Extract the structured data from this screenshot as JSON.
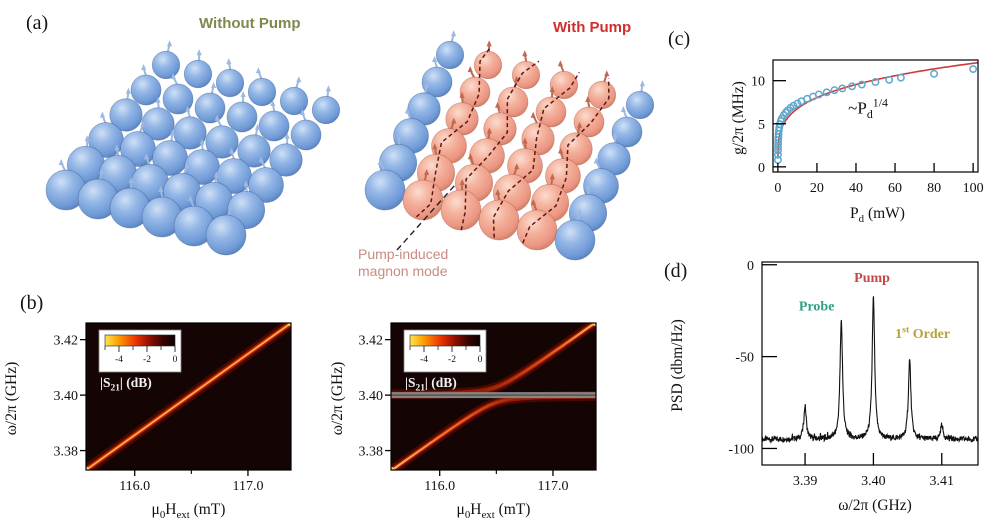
{
  "background": "#ffffff",
  "panels": {
    "a": {
      "label": "(a)",
      "left_title": "Without Pump",
      "right_title": "With Pump",
      "annotation_line1": "Pump-induced",
      "annotation_line2": "magnon mode",
      "colors": {
        "left_title": "#7c8a4e",
        "right_title": "#cf2f2f",
        "annotation": "#c98b82",
        "sphere_blue": "#7fa5da",
        "sphere_pink": "#efa28e"
      },
      "lattice": {
        "rows": 6,
        "cols": 6,
        "pink_lines": [
          1,
          2,
          3,
          4
        ]
      }
    },
    "b": {
      "label": "(b)"
    },
    "c": {
      "label": "(c)"
    },
    "d": {
      "label": "(d)"
    }
  },
  "chart_data": [
    {
      "id": "hmL",
      "type": "heatmap",
      "title": "transmission without pump",
      "x": {
        "min": 115.57,
        "max": 117.38,
        "ticks": [
          {
            "v": 116.0,
            "label": "116.0"
          },
          {
            "v": 117.0,
            "label": "117.0"
          }
        ],
        "minor": [
          116.5
        ]
      },
      "y": {
        "min": 3.373,
        "max": 3.426,
        "ticks": [
          {
            "v": 3.42,
            "label": "3.42"
          },
          {
            "v": 3.4,
            "label": "3.40"
          },
          {
            "v": 3.38,
            "label": "3.38"
          }
        ]
      },
      "xlabel": [
        {
          "t": "μ"
        },
        {
          "t": "0",
          "s": "sub"
        },
        {
          "t": "H"
        },
        {
          "t": "ext",
          "s": "sub"
        },
        {
          "t": " (mT)"
        }
      ],
      "ylabel": [
        {
          "t": "ω/2π (GHz)"
        }
      ],
      "colorbar": {
        "min": -5,
        "max": 0,
        "ticks": [
          {
            "v": -4,
            "label": "-4"
          },
          {
            "v": -2,
            "label": "-2"
          },
          {
            "v": 0,
            "label": "0"
          }
        ],
        "minor": [
          -5,
          -3,
          -1
        ],
        "label": [
          {
            "t": "|S"
          },
          {
            "t": "21",
            "s": "sub"
          },
          {
            "t": "| (dB)"
          }
        ]
      },
      "content": {
        "mode": "diagonal"
      }
    },
    {
      "id": "hmR",
      "type": "heatmap",
      "title": "transmission with pump (anticrossing)",
      "x": {
        "min": 115.57,
        "max": 117.38,
        "ticks": [
          {
            "v": 116.0,
            "label": "116.0"
          },
          {
            "v": 117.0,
            "label": "117.0"
          }
        ],
        "minor": [
          116.5
        ]
      },
      "y": {
        "min": 3.373,
        "max": 3.426,
        "ticks": [
          {
            "v": 3.42,
            "label": "3.42"
          },
          {
            "v": 3.4,
            "label": "3.40"
          },
          {
            "v": 3.38,
            "label": "3.38"
          }
        ]
      },
      "xlabel": [
        {
          "t": "μ"
        },
        {
          "t": "0",
          "s": "sub"
        },
        {
          "t": "H"
        },
        {
          "t": "ext",
          "s": "sub"
        },
        {
          "t": " (mT)"
        }
      ],
      "ylabel": [
        {
          "t": "ω/2π (GHz)"
        }
      ],
      "colorbar": {
        "min": -5,
        "max": 0,
        "ticks": [
          {
            "v": -4,
            "label": "-4"
          },
          {
            "v": -2,
            "label": "-2"
          },
          {
            "v": 0,
            "label": "0"
          }
        ],
        "minor": [
          -5,
          -3,
          -1
        ],
        "label": [
          {
            "t": "|S"
          },
          {
            "t": "21",
            "s": "sub"
          },
          {
            "t": "| (dB)"
          }
        ]
      },
      "content": {
        "mode": "anticrossing",
        "pump_freq": 3.4,
        "coupling": 0.0028
      }
    },
    {
      "id": "gc",
      "type": "scatter",
      "title": "coupling strength vs drive power",
      "x": {
        "min": -2.5,
        "max": 102.5,
        "ticks": [
          {
            "v": 0,
            "label": "0"
          },
          {
            "v": 20,
            "label": "20"
          },
          {
            "v": 40,
            "label": "40"
          },
          {
            "v": 60,
            "label": "60"
          },
          {
            "v": 80,
            "label": "80"
          },
          {
            "v": 100,
            "label": "100"
          }
        ]
      },
      "y": {
        "min": -0.6,
        "max": 12.4,
        "ticks": [
          {
            "v": 0,
            "label": "0"
          },
          {
            "v": 5,
            "label": "5"
          },
          {
            "v": 10,
            "label": "10"
          }
        ]
      },
      "xlabel": [
        {
          "t": "P"
        },
        {
          "t": "d",
          "s": "sub"
        },
        {
          "t": " (mW)"
        }
      ],
      "ylabel": [
        {
          "t": "g/2π (MHz)"
        }
      ],
      "point_color": "#5ea9cb",
      "points": [
        [
          0.02,
          0.8
        ],
        [
          0.04,
          1.4
        ],
        [
          0.06,
          1.9
        ],
        [
          0.09,
          2.3
        ],
        [
          0.13,
          2.7
        ],
        [
          0.18,
          3.1
        ],
        [
          0.25,
          3.45
        ],
        [
          0.35,
          3.8
        ],
        [
          0.5,
          4.2
        ],
        [
          0.7,
          4.55
        ],
        [
          1,
          4.95
        ],
        [
          1.5,
          5.3
        ],
        [
          2,
          5.6
        ],
        [
          3,
          6.0
        ],
        [
          4,
          6.3
        ],
        [
          5,
          6.55
        ],
        [
          6.5,
          6.85
        ],
        [
          8,
          7.1
        ],
        [
          10,
          7.35
        ],
        [
          12,
          7.6
        ],
        [
          15,
          7.9
        ],
        [
          18,
          8.15
        ],
        [
          21,
          8.4
        ],
        [
          25,
          8.65
        ],
        [
          29,
          8.9
        ],
        [
          33,
          9.1
        ],
        [
          38,
          9.35
        ],
        [
          43,
          9.55
        ],
        [
          50,
          9.85
        ],
        [
          57,
          10.1
        ],
        [
          63,
          10.35
        ],
        [
          80,
          10.8
        ],
        [
          100,
          11.35
        ]
      ],
      "fit": {
        "model": "g = a*Pd^1/4",
        "a": 3.8,
        "exp": 0.25,
        "color": "#cf3a3a"
      },
      "annotation": {
        "segments": [
          {
            "t": "~P"
          },
          {
            "t": "d",
            "s": "sub"
          },
          {
            "t": "1/4",
            "s": "sup"
          }
        ],
        "x": 36,
        "y": 6.2
      }
    },
    {
      "id": "psd",
      "type": "line",
      "title": "power spectral density",
      "x": {
        "min": 3.3837,
        "max": 3.4153,
        "ticks": [
          {
            "v": 3.39,
            "label": "3.39"
          },
          {
            "v": 3.4,
            "label": "3.40"
          },
          {
            "v": 3.41,
            "label": "3.41"
          }
        ]
      },
      "y": {
        "min": -109,
        "max": 1.5,
        "ticks": [
          {
            "v": 0,
            "label": "0"
          },
          {
            "v": -50,
            "label": "-50"
          },
          {
            "v": -100,
            "label": "-100"
          }
        ]
      },
      "xlabel": [
        {
          "t": "ω/2π (GHz)"
        }
      ],
      "ylabel": [
        {
          "t": "PSD (dbm/Hz)"
        }
      ],
      "baseline": -95,
      "noise_db": 1.5,
      "peak_width": 0.00022,
      "peaks": [
        {
          "f": 3.39,
          "psd": -77,
          "name": ""
        },
        {
          "f": 3.3953,
          "psd": -30,
          "name": "Probe"
        },
        {
          "f": 3.4,
          "psd": -18,
          "name": "Pump"
        },
        {
          "f": 3.4053,
          "psd": -52,
          "name": "1st Order"
        },
        {
          "f": 3.41,
          "psd": -87,
          "name": ""
        }
      ],
      "labels": [
        {
          "segments": [
            {
              "t": "Probe"
            }
          ],
          "f": 3.3917,
          "psd": -25,
          "color": "#2fa184"
        },
        {
          "segments": [
            {
              "t": "Pump"
            }
          ],
          "f": 3.3998,
          "psd": -9.5,
          "color": "#c74646"
        },
        {
          "segments": [
            {
              "t": "1"
            },
            {
              "t": "st",
              "s": "sup"
            },
            {
              "t": " Order"
            }
          ],
          "f": 3.4072,
          "psd": -40,
          "color": "#b5a43a"
        }
      ]
    }
  ]
}
